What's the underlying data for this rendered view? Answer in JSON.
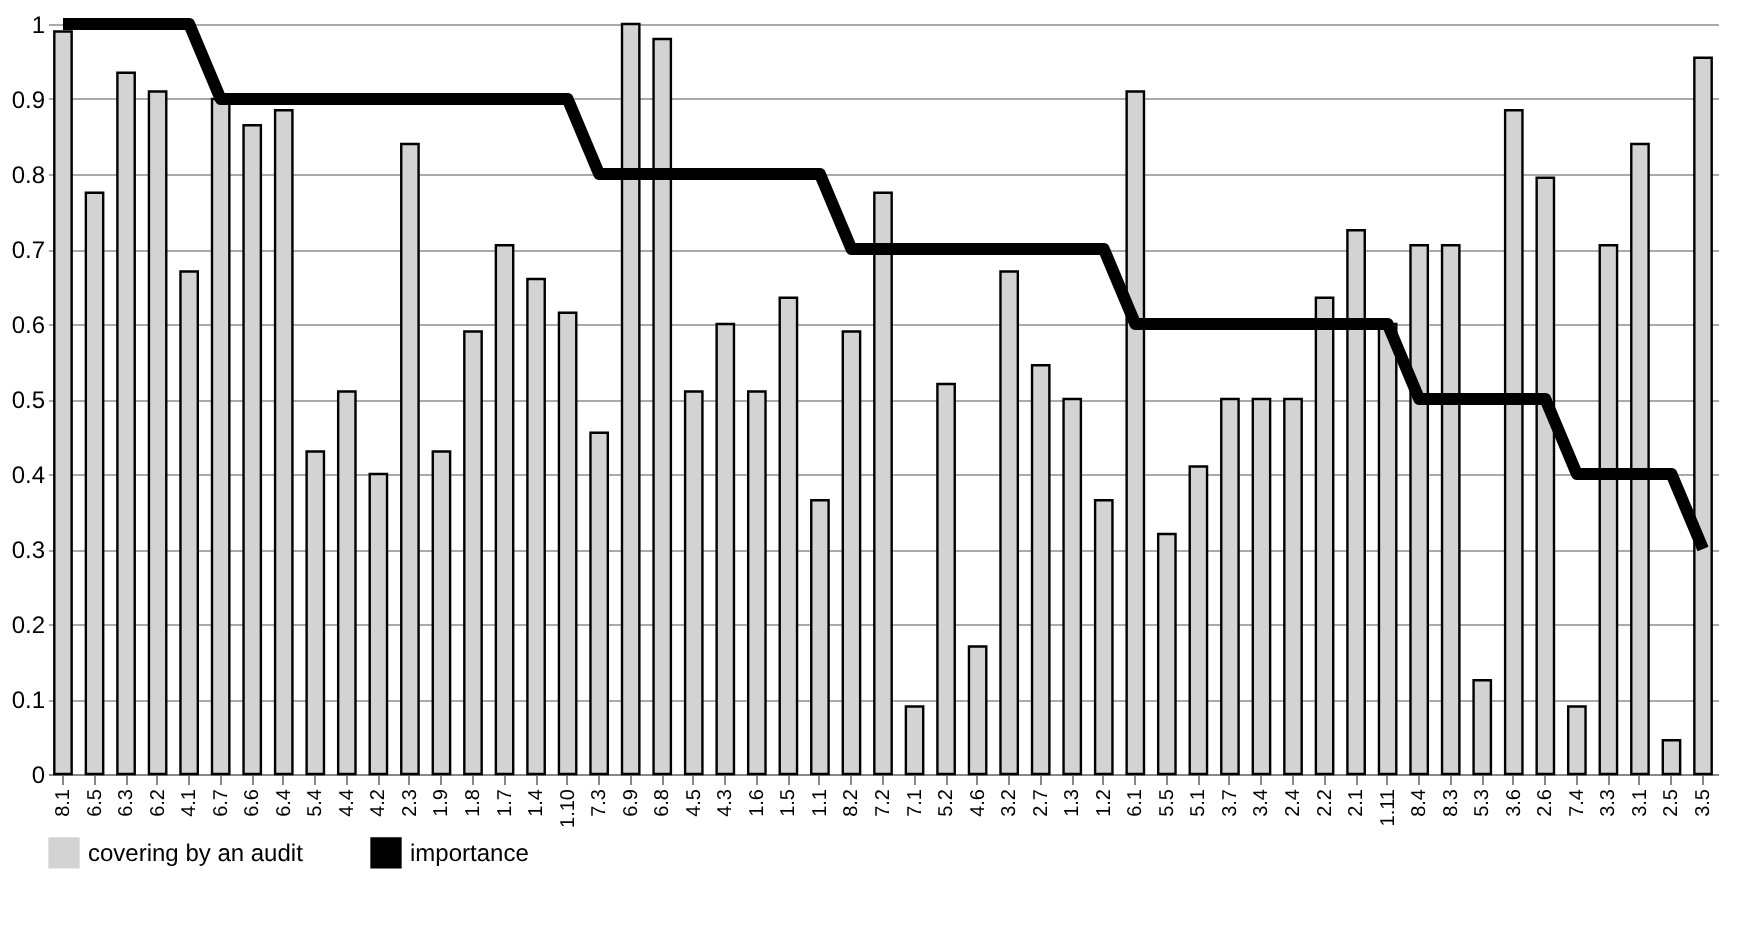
{
  "chart_data": {
    "type": "bar",
    "categories": [
      "8.1",
      "6.5",
      "6.3",
      "6.2",
      "4.1",
      "6.7",
      "6.6",
      "6.4",
      "5.4",
      "4.4",
      "4.2",
      "2.3",
      "1.9",
      "1.8",
      "1.7",
      "1.4",
      "1.10",
      "7.3",
      "6.9",
      "6.8",
      "4.5",
      "4.3",
      "1.6",
      "1.5",
      "1.1",
      "8.2",
      "7.2",
      "7.1",
      "5.2",
      "4.6",
      "3.2",
      "2.7",
      "1.3",
      "1.2",
      "6.1",
      "5.5",
      "5.1",
      "3.7",
      "3.4",
      "2.4",
      "2.2",
      "2.1",
      "1.11",
      "8.4",
      "8.3",
      "5.3",
      "3.6",
      "2.6",
      "7.4",
      "3.3",
      "3.1",
      "2.5",
      "3.5"
    ],
    "series": [
      {
        "name": "covering by an audit",
        "color": "#d3d3d3",
        "values": [
          0.99,
          0.775,
          0.935,
          0.91,
          0.67,
          0.9,
          0.865,
          0.885,
          0.43,
          0.51,
          0.4,
          0.84,
          0.43,
          0.59,
          0.705,
          0.66,
          0.615,
          0.455,
          1.0,
          0.98,
          0.51,
          0.6,
          0.51,
          0.635,
          0.365,
          0.59,
          0.775,
          0.09,
          0.52,
          0.17,
          0.67,
          0.545,
          0.5,
          0.365,
          0.91,
          0.32,
          0.41,
          0.5,
          0.5,
          0.5,
          0.635,
          0.725,
          0.6,
          0.705,
          0.705,
          0.125,
          0.885,
          0.795,
          0.09,
          0.705,
          0.84,
          0.045,
          0.955
        ]
      },
      {
        "name": "importance",
        "type": "line",
        "color": "#000000",
        "values": [
          1,
          1,
          1,
          1,
          1,
          0.9,
          0.9,
          0.9,
          0.9,
          0.9,
          0.9,
          0.9,
          0.9,
          0.9,
          0.9,
          0.9,
          0.9,
          0.8,
          0.8,
          0.8,
          0.8,
          0.8,
          0.8,
          0.8,
          0.8,
          0.7,
          0.7,
          0.7,
          0.7,
          0.7,
          0.7,
          0.7,
          0.7,
          0.7,
          0.6,
          0.6,
          0.6,
          0.6,
          0.6,
          0.6,
          0.6,
          0.6,
          0.6,
          0.5,
          0.5,
          0.5,
          0.5,
          0.5,
          0.4,
          0.4,
          0.4,
          0.4,
          0.3
        ]
      }
    ],
    "ylim": [
      0,
      1
    ],
    "yticks": [
      0,
      0.1,
      0.2,
      0.3,
      0.4,
      0.5,
      0.6,
      0.7,
      0.8,
      0.9,
      1
    ],
    "grid": "y",
    "legend": "bottom",
    "line_style": "solid",
    "marker": "none"
  }
}
